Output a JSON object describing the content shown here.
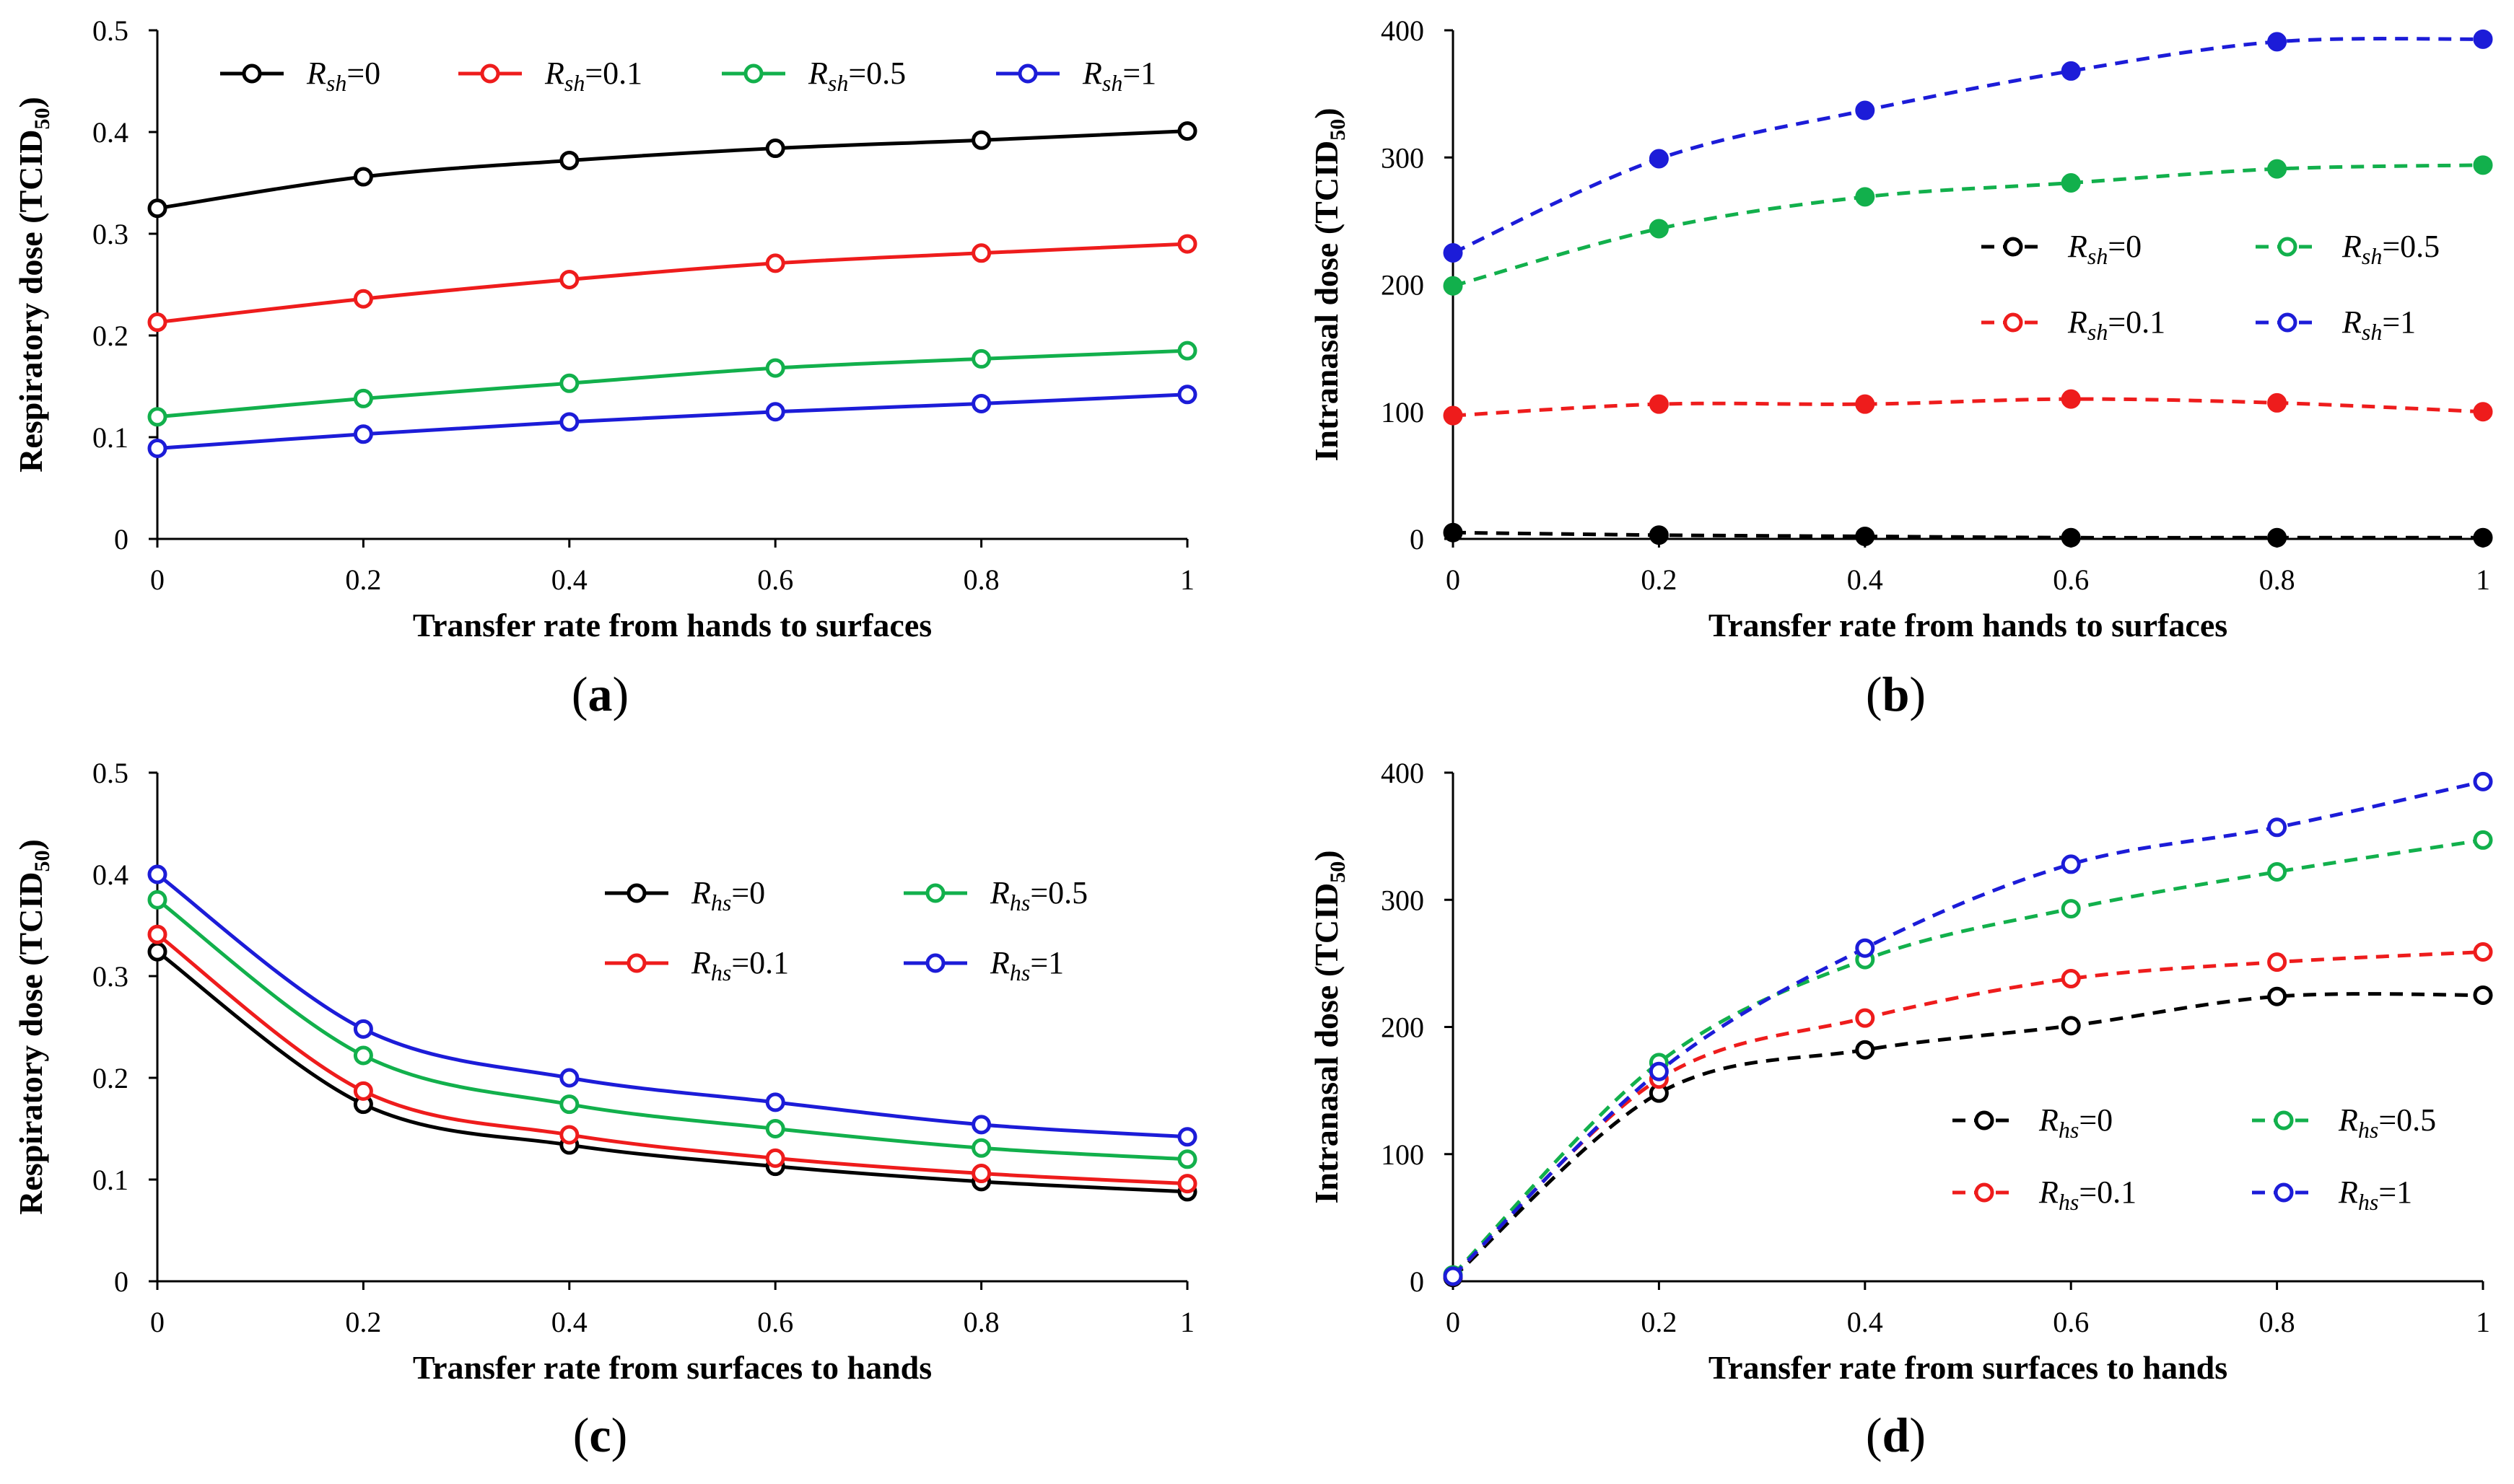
{
  "colors": {
    "black": "#000000",
    "red": "#ee1c1c",
    "green": "#12b04c",
    "blue": "#1c1cd8",
    "axis": "#000000",
    "background": "#ffffff"
  },
  "chart_data": [
    {
      "id": "a",
      "panel_label": "(a)",
      "type": "line",
      "line_style": "solid",
      "marker_style": "open",
      "xlabel": "Transfer rate from hands to surfaces",
      "ylabel": "Respiratory dose (TCID50)",
      "ylabel_main": "Respiratory dose (TCID",
      "ylabel_sub": "50",
      "ylabel_end": ")",
      "x": [
        0,
        0.2,
        0.4,
        0.6,
        0.8,
        1
      ],
      "xlim": [
        0,
        1
      ],
      "ylim": [
        0,
        0.5
      ],
      "xticks": [
        "0",
        "0.2",
        "0.4",
        "0.6",
        "0.8",
        "1"
      ],
      "yticks": [
        "0",
        "0.1",
        "0.2",
        "0.3",
        "0.4",
        "0.5"
      ],
      "legend_position": "top",
      "series": [
        {
          "name": "Rsh=0",
          "var": "R",
          "sub": "sh",
          "val": "=0",
          "color": "#000000",
          "values": [
            0.325,
            0.356,
            0.372,
            0.384,
            0.392,
            0.401
          ]
        },
        {
          "name": "Rsh=0.1",
          "var": "R",
          "sub": "sh",
          "val": "=0.1",
          "color": "#ee1c1c",
          "values": [
            0.213,
            0.236,
            0.255,
            0.271,
            0.281,
            0.29
          ]
        },
        {
          "name": "Rsh=0.5",
          "var": "R",
          "sub": "sh",
          "val": "=0.5",
          "color": "#12b04c",
          "values": [
            0.12,
            0.138,
            0.153,
            0.168,
            0.177,
            0.185
          ]
        },
        {
          "name": "Rsh=1",
          "var": "R",
          "sub": "sh",
          "val": "=1",
          "color": "#1c1cd8",
          "values": [
            0.089,
            0.103,
            0.115,
            0.125,
            0.133,
            0.142
          ]
        }
      ]
    },
    {
      "id": "b",
      "panel_label": "(b)",
      "type": "line",
      "line_style": "dashed",
      "marker_style": "filled",
      "xlabel": "Transfer rate from hands to surfaces",
      "ylabel": "Intranasal dose (TCID50)",
      "ylabel_main": "Intranasal dose (TCID",
      "ylabel_sub": "50",
      "ylabel_end": ")",
      "x": [
        0,
        0.2,
        0.4,
        0.6,
        0.8,
        1
      ],
      "xlim": [
        0,
        1
      ],
      "ylim": [
        0,
        400
      ],
      "xticks": [
        "0",
        "0.2",
        "0.4",
        "0.6",
        "0.8",
        "1"
      ],
      "yticks": [
        "0",
        "100",
        "200",
        "300",
        "400"
      ],
      "legend_position": "right-middle",
      "series": [
        {
          "name": "Rsh=0",
          "var": "R",
          "sub": "sh",
          "val": "=0",
          "color": "#000000",
          "values": [
            5,
            3,
            2,
            1,
            1,
            1
          ]
        },
        {
          "name": "Rsh=0.1",
          "var": "R",
          "sub": "sh",
          "val": "=0.1",
          "color": "#ee1c1c",
          "values": [
            97,
            106,
            106,
            110,
            107,
            100
          ]
        },
        {
          "name": "Rsh=0.5",
          "var": "R",
          "sub": "sh",
          "val": "=0.5",
          "color": "#12b04c",
          "values": [
            199,
            244,
            269,
            280,
            291,
            294
          ]
        },
        {
          "name": "Rsh=1",
          "var": "R",
          "sub": "sh",
          "val": "=1",
          "color": "#1c1cd8",
          "values": [
            225,
            299,
            337,
            368,
            391,
            393
          ]
        }
      ]
    },
    {
      "id": "c",
      "panel_label": "(c)",
      "type": "line",
      "line_style": "solid",
      "marker_style": "open",
      "xlabel": "Transfer rate from surfaces to hands",
      "ylabel": "Respiratory dose (TCID50)",
      "ylabel_main": "Respiratory dose (TCID",
      "ylabel_sub": "50",
      "ylabel_end": ")",
      "x": [
        0,
        0.2,
        0.4,
        0.6,
        0.8,
        1
      ],
      "xlim": [
        0,
        1
      ],
      "ylim": [
        0,
        0.5
      ],
      "xticks": [
        "0",
        "0.2",
        "0.4",
        "0.6",
        "0.8",
        "1"
      ],
      "yticks": [
        "0",
        "0.1",
        "0.2",
        "0.3",
        "0.4",
        "0.5"
      ],
      "legend_position": "right-middle",
      "series": [
        {
          "name": "Rhs=0",
          "var": "R",
          "sub": "hs",
          "val": "=0",
          "color": "#000000",
          "values": [
            0.324,
            0.174,
            0.134,
            0.113,
            0.098,
            0.088
          ]
        },
        {
          "name": "Rhs=0.1",
          "var": "R",
          "sub": "hs",
          "val": "=0.1",
          "color": "#ee1c1c",
          "values": [
            0.341,
            0.187,
            0.144,
            0.121,
            0.106,
            0.096
          ]
        },
        {
          "name": "Rhs=0.5",
          "var": "R",
          "sub": "hs",
          "val": "=0.5",
          "color": "#12b04c",
          "values": [
            0.375,
            0.222,
            0.174,
            0.15,
            0.131,
            0.12
          ]
        },
        {
          "name": "Rhs=1",
          "var": "R",
          "sub": "hs",
          "val": "=1",
          "color": "#1c1cd8",
          "values": [
            0.4,
            0.248,
            0.2,
            0.176,
            0.154,
            0.142
          ]
        }
      ]
    },
    {
      "id": "d",
      "panel_label": "(d)",
      "type": "line",
      "line_style": "dashed",
      "marker_style": "open",
      "xlabel": "Transfer rate from surfaces to hands",
      "ylabel": "Intranasal dose (TCID50)",
      "ylabel_main": "Intranasal dose (TCID",
      "ylabel_sub": "50",
      "ylabel_end": ")",
      "x": [
        0,
        0.2,
        0.4,
        0.6,
        0.8,
        1
      ],
      "xlim": [
        0,
        1
      ],
      "ylim": [
        0,
        400
      ],
      "xticks": [
        "0",
        "0.2",
        "0.4",
        "0.6",
        "0.8",
        "1"
      ],
      "yticks": [
        "0",
        "100",
        "200",
        "300",
        "400"
      ],
      "legend_position": "bottom-right",
      "series": [
        {
          "name": "Rhs=0",
          "var": "R",
          "sub": "hs",
          "val": "=0",
          "color": "#000000",
          "values": [
            3,
            148,
            182,
            201,
            224,
            225
          ]
        },
        {
          "name": "Rhs=0.1",
          "var": "R",
          "sub": "hs",
          "val": "=0.1",
          "color": "#ee1c1c",
          "values": [
            4,
            159,
            207,
            238,
            251,
            259
          ]
        },
        {
          "name": "Rhs=0.5",
          "var": "R",
          "sub": "hs",
          "val": "=0.5",
          "color": "#12b04c",
          "values": [
            5,
            172,
            253,
            293,
            322,
            347
          ]
        },
        {
          "name": "Rhs=1",
          "var": "R",
          "sub": "hs",
          "val": "=1",
          "color": "#1c1cd8",
          "values": [
            4,
            165,
            262,
            328,
            357,
            393
          ]
        }
      ]
    }
  ]
}
